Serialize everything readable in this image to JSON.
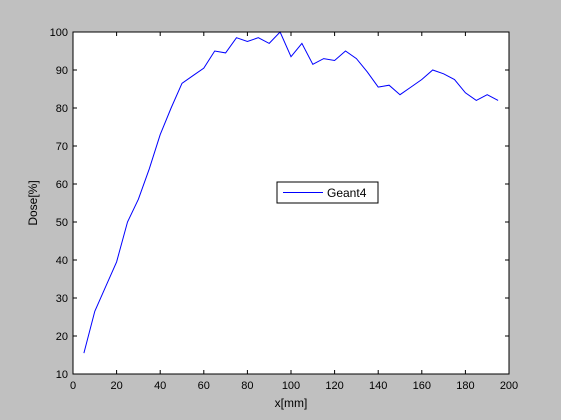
{
  "figure": {
    "background": "#c0c0c0",
    "plot_background": "#ffffff",
    "line_color": "#0000ff"
  },
  "chart_data": {
    "type": "line",
    "title": "",
    "xlabel": "x[mm]",
    "ylabel": "Dose[%]",
    "xlim": [
      0,
      200
    ],
    "ylim": [
      10,
      100
    ],
    "xticks": [
      0,
      20,
      40,
      60,
      80,
      100,
      120,
      140,
      160,
      180,
      200
    ],
    "yticks": [
      10,
      20,
      30,
      40,
      50,
      60,
      70,
      80,
      90,
      100
    ],
    "grid": false,
    "legend_position": "center-right",
    "series": [
      {
        "name": "Geant4",
        "color": "#0000ff",
        "x": [
          5,
          10,
          15,
          20,
          25,
          30,
          35,
          40,
          45,
          50,
          55,
          60,
          65,
          70,
          75,
          80,
          85,
          90,
          95,
          100,
          105,
          110,
          115,
          120,
          125,
          130,
          135,
          140,
          145,
          150,
          155,
          160,
          165,
          170,
          175,
          180,
          185,
          190,
          195
        ],
        "y": [
          15.5,
          26.5,
          33,
          39.5,
          50,
          56,
          64,
          73,
          80,
          86.5,
          88.5,
          90.5,
          95,
          94.5,
          98.5,
          97.5,
          98.5,
          97,
          100,
          93.5,
          97,
          91.5,
          93,
          92.5,
          95,
          93,
          89.5,
          85.5,
          86,
          83.5,
          85.5,
          87.5,
          90,
          89,
          87.5,
          84,
          82,
          83.5,
          82
        ]
      }
    ]
  }
}
